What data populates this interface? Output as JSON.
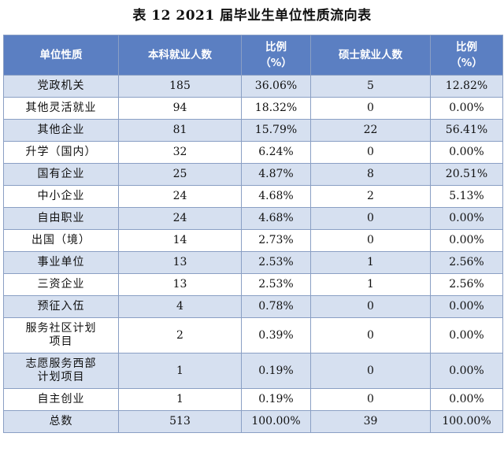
{
  "title": "表 12 2021 届毕业生单位性质流向表",
  "headers": {
    "col1": "单位性质",
    "col2": "本科就业人数",
    "col3_line1": "比例",
    "col3_line2": "（%）",
    "col4": "硕士就业人数",
    "col5_line1": "比例",
    "col5_line2": "（%）"
  },
  "rows": [
    {
      "name_lines": [
        "党政机关"
      ],
      "bachelor": "185",
      "bachelor_pct": "36.06%",
      "master": "5",
      "master_pct": "12.82%"
    },
    {
      "name_lines": [
        "其他灵活就业"
      ],
      "bachelor": "94",
      "bachelor_pct": "18.32%",
      "master": "0",
      "master_pct": "0.00%"
    },
    {
      "name_lines": [
        "其他企业"
      ],
      "bachelor": "81",
      "bachelor_pct": "15.79%",
      "master": "22",
      "master_pct": "56.41%"
    },
    {
      "name_lines": [
        "升学（国内）"
      ],
      "bachelor": "32",
      "bachelor_pct": "6.24%",
      "master": "0",
      "master_pct": "0.00%"
    },
    {
      "name_lines": [
        "国有企业"
      ],
      "bachelor": "25",
      "bachelor_pct": "4.87%",
      "master": "8",
      "master_pct": "20.51%"
    },
    {
      "name_lines": [
        "中小企业"
      ],
      "bachelor": "24",
      "bachelor_pct": "4.68%",
      "master": "2",
      "master_pct": "5.13%"
    },
    {
      "name_lines": [
        "自由职业"
      ],
      "bachelor": "24",
      "bachelor_pct": "4.68%",
      "master": "0",
      "master_pct": "0.00%"
    },
    {
      "name_lines": [
        "出国（境）"
      ],
      "bachelor": "14",
      "bachelor_pct": "2.73%",
      "master": "0",
      "master_pct": "0.00%"
    },
    {
      "name_lines": [
        "事业单位"
      ],
      "bachelor": "13",
      "bachelor_pct": "2.53%",
      "master": "1",
      "master_pct": "2.56%"
    },
    {
      "name_lines": [
        "三资企业"
      ],
      "bachelor": "13",
      "bachelor_pct": "2.53%",
      "master": "1",
      "master_pct": "2.56%"
    },
    {
      "name_lines": [
        "预征入伍"
      ],
      "bachelor": "4",
      "bachelor_pct": "0.78%",
      "master": "0",
      "master_pct": "0.00%"
    },
    {
      "name_lines": [
        "服务社区计划",
        "项目"
      ],
      "bachelor": "2",
      "bachelor_pct": "0.39%",
      "master": "0",
      "master_pct": "0.00%"
    },
    {
      "name_lines": [
        "志愿服务西部",
        "计划项目"
      ],
      "bachelor": "1",
      "bachelor_pct": "0.19%",
      "master": "0",
      "master_pct": "0.00%"
    },
    {
      "name_lines": [
        "自主创业"
      ],
      "bachelor": "1",
      "bachelor_pct": "0.19%",
      "master": "0",
      "master_pct": "0.00%"
    },
    {
      "name_lines": [
        "总数"
      ],
      "bachelor": "513",
      "bachelor_pct": "100.00%",
      "master": "39",
      "master_pct": "100.00%"
    }
  ],
  "colors": {
    "header_bg": "#5b7fc2",
    "alt_row_bg": "#d6e0f0",
    "border": "#8a9fc4"
  }
}
